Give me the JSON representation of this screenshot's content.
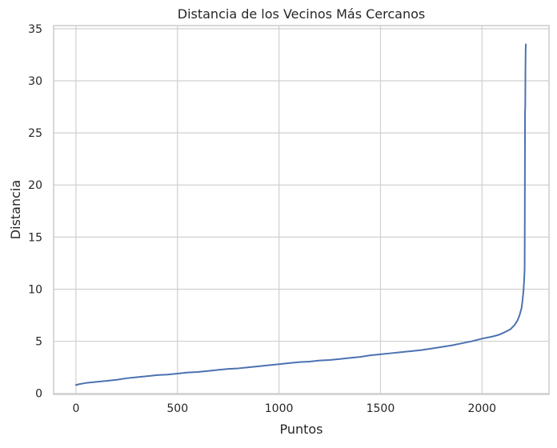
{
  "chart_data": {
    "type": "line",
    "title": "Distancia de los Vecinos Más Cercanos",
    "xlabel": "Puntos",
    "ylabel": "Distancia",
    "xlim": [
      -110,
      2330
    ],
    "ylim": [
      -0.1,
      35.3
    ],
    "xticks": [
      0,
      500,
      1000,
      1500,
      2000
    ],
    "yticks": [
      0,
      5,
      10,
      15,
      20,
      25,
      30,
      35
    ],
    "grid": true,
    "colors": {
      "line": "#4c72b0",
      "grid": "#d0d0d0",
      "spine": "#cccccc",
      "text": "#262626"
    },
    "series": [
      {
        "x": [
          0,
          20,
          50,
          100,
          150,
          200,
          250,
          300,
          350,
          400,
          450,
          500,
          550,
          600,
          650,
          700,
          750,
          800,
          850,
          900,
          950,
          1000,
          1050,
          1100,
          1150,
          1200,
          1250,
          1300,
          1350,
          1400,
          1450,
          1500,
          1550,
          1600,
          1650,
          1700,
          1750,
          1800,
          1850,
          1900,
          1950,
          2000,
          2050,
          2080,
          2110,
          2140,
          2160,
          2175,
          2185,
          2195,
          2200,
          2205,
          2208,
          2210,
          2211,
          2212,
          2213,
          2214,
          2215,
          2216
        ],
        "y": [
          0.8,
          0.9,
          1.0,
          1.1,
          1.2,
          1.3,
          1.45,
          1.55,
          1.65,
          1.75,
          1.8,
          1.9,
          2.0,
          2.05,
          2.15,
          2.25,
          2.35,
          2.4,
          2.5,
          2.6,
          2.7,
          2.8,
          2.9,
          3.0,
          3.05,
          3.15,
          3.2,
          3.3,
          3.4,
          3.5,
          3.65,
          3.75,
          3.85,
          3.95,
          4.05,
          4.15,
          4.3,
          4.45,
          4.6,
          4.8,
          5.0,
          5.25,
          5.45,
          5.6,
          5.85,
          6.15,
          6.55,
          7.0,
          7.5,
          8.2,
          9.0,
          10.0,
          11.0,
          12.0,
          18.0,
          27.0,
          27.5,
          31.0,
          33.0,
          33.5
        ]
      }
    ]
  }
}
